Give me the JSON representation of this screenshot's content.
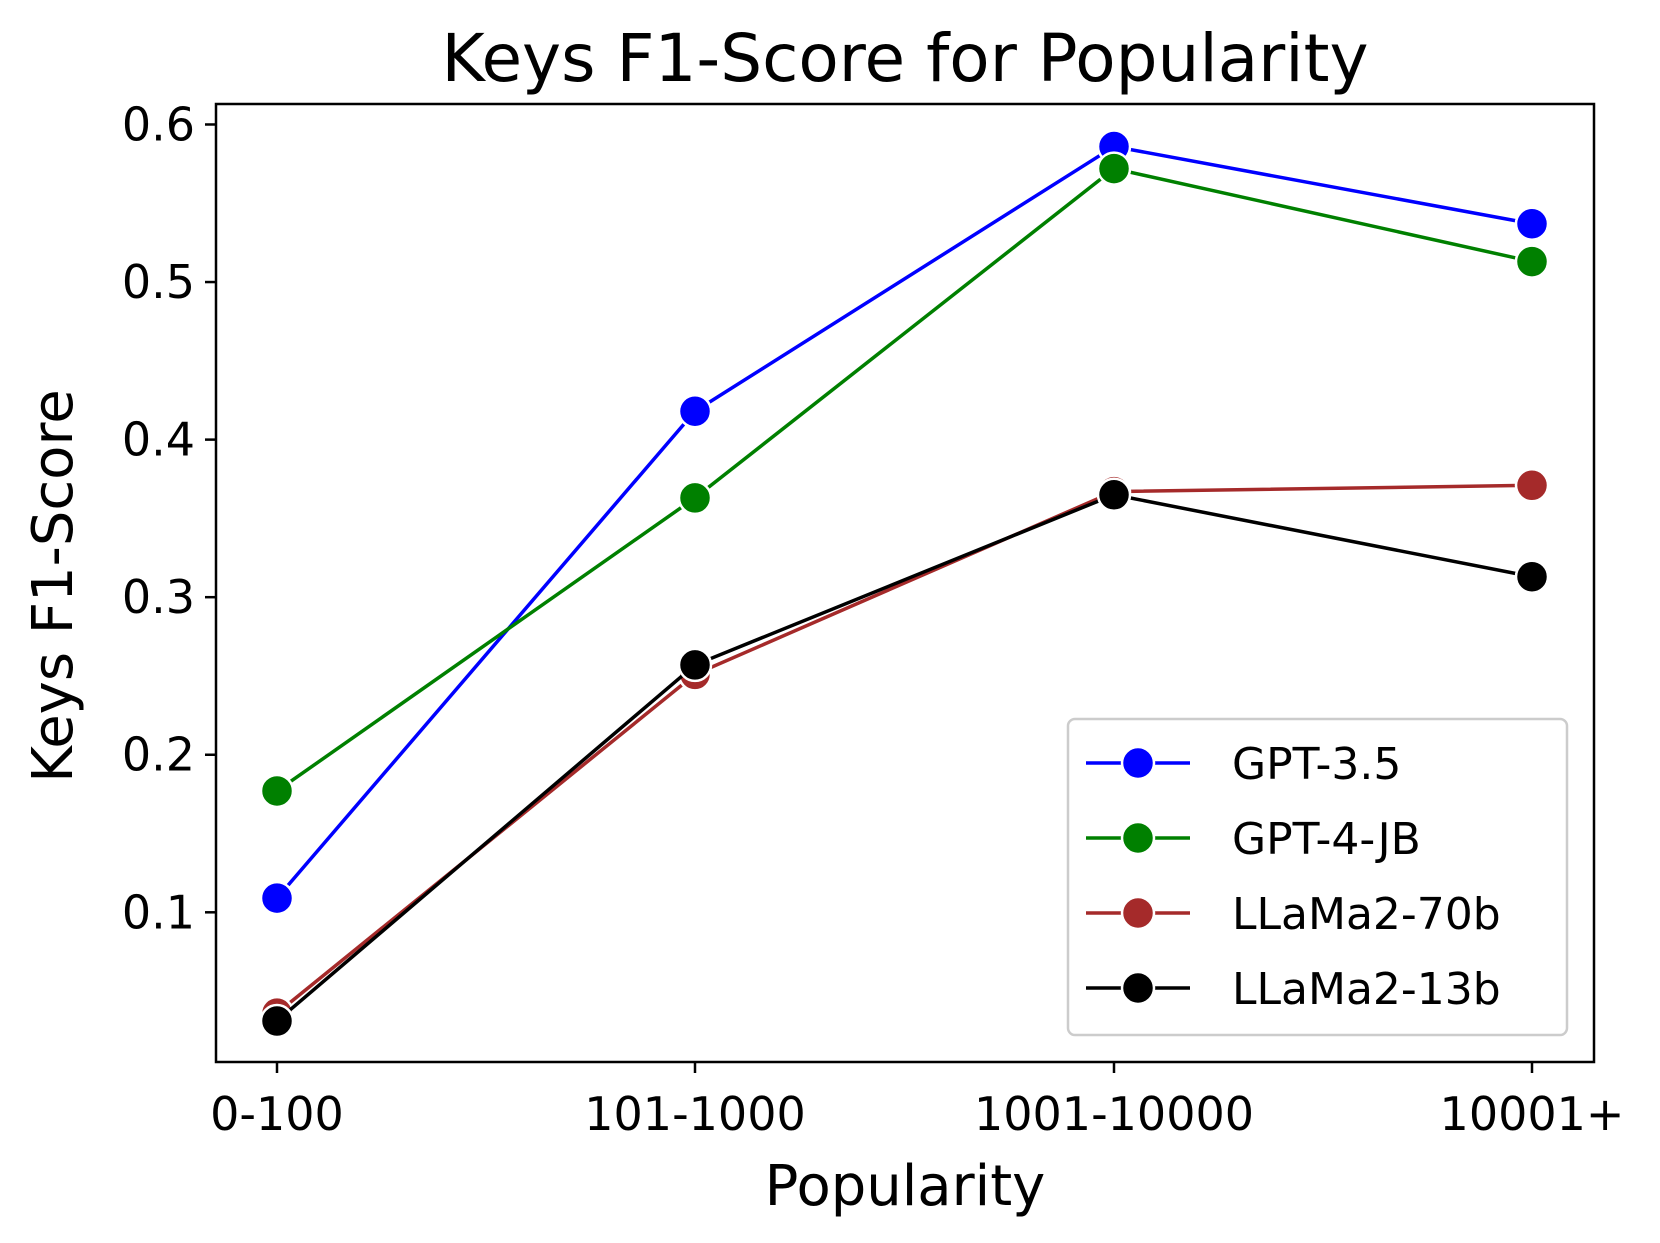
{
  "chart_data": {
    "type": "line",
    "title": "Keys F1-Score for Popularity",
    "xlabel": "Popularity",
    "ylabel": "Keys F1-Score",
    "categories": [
      "0-100",
      "101-1000",
      "1001-10000",
      "10001+"
    ],
    "ylim": [
      0.005,
      0.613
    ],
    "yticks": [
      "0.1",
      "0.2",
      "0.3",
      "0.4",
      "0.5",
      "0.6"
    ],
    "grid": false,
    "legend_position": "lower right",
    "series": [
      {
        "name": "GPT-3.5",
        "color": "#0000ff",
        "values": [
          0.109,
          0.418,
          0.586,
          0.537
        ]
      },
      {
        "name": "GPT-4-JB",
        "color": "#008000",
        "values": [
          0.177,
          0.363,
          0.572,
          0.513
        ]
      },
      {
        "name": "LLaMa2-70b",
        "color": "#a52a2a",
        "values": [
          0.036,
          0.251,
          0.367,
          0.371
        ]
      },
      {
        "name": "LLaMa2-13b",
        "color": "#000000",
        "values": [
          0.031,
          0.257,
          0.365,
          0.313
        ]
      }
    ]
  }
}
